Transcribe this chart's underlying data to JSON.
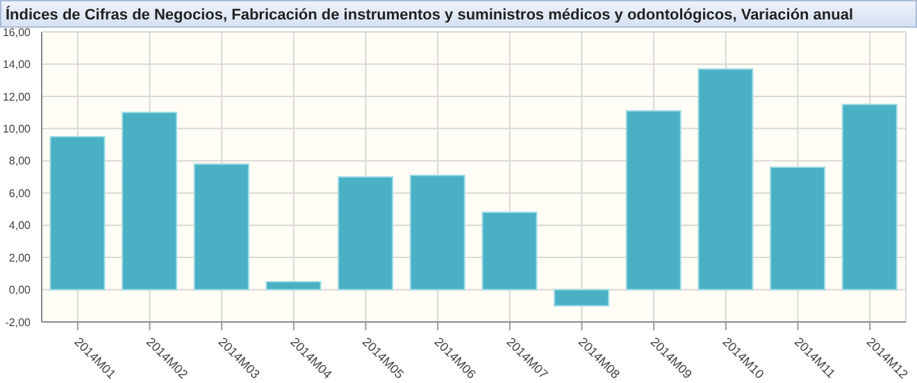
{
  "chart_data": {
    "type": "bar",
    "title": "Índices de Cifras de Negocios, Fabricación de instrumentos y suministros médicos y odontológicos, Variación anual",
    "categories": [
      "2014M01",
      "2014M02",
      "2014M03",
      "2014M04",
      "2014M05",
      "2014M06",
      "2014M07",
      "2014M08",
      "2014M09",
      "2014M10",
      "2014M11",
      "2014M12"
    ],
    "values": [
      9.5,
      11.0,
      7.8,
      0.5,
      7.0,
      7.1,
      4.8,
      -1.0,
      11.1,
      13.7,
      7.6,
      11.5
    ],
    "color": "#4ab0c4",
    "ylim": [
      -2,
      16
    ],
    "yticks": [
      {
        "value": -2,
        "label": "-2,00"
      },
      {
        "value": 0,
        "label": "0,00"
      },
      {
        "value": 2,
        "label": "2,00"
      },
      {
        "value": 4,
        "label": "4,00"
      },
      {
        "value": 6,
        "label": "6,00"
      },
      {
        "value": 8,
        "label": "8,00"
      },
      {
        "value": 10,
        "label": "10,00"
      },
      {
        "value": 12,
        "label": "12,00"
      },
      {
        "value": 14,
        "label": "14,00"
      },
      {
        "value": 16,
        "label": "16,00"
      }
    ],
    "grid": true
  }
}
